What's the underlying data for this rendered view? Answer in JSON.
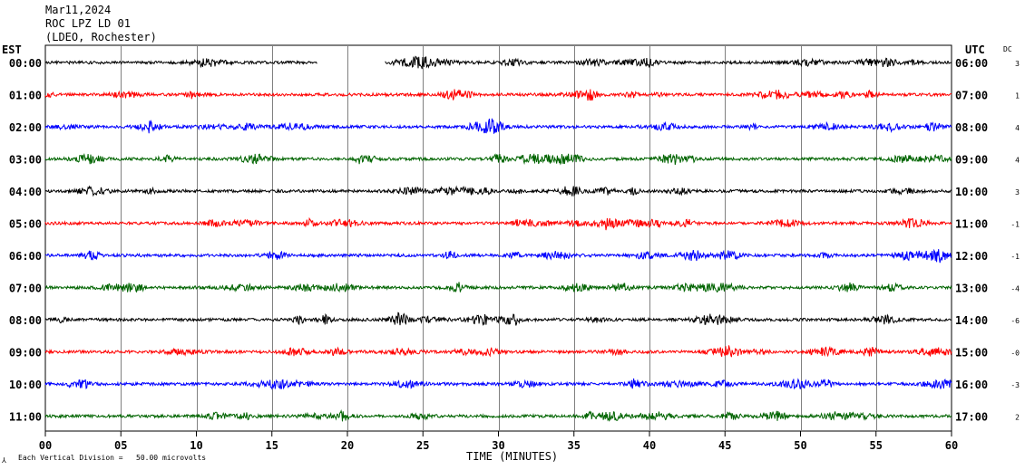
{
  "header": {
    "date": "Mar11,2024",
    "station": "ROC LPZ LD 01",
    "network": "(LDEO, Rochester)"
  },
  "labels": {
    "left_zone": "EST",
    "right_zone": "UTC",
    "dc_header": "DC",
    "xlabel": "TIME (MINUTES)",
    "scale_note": "Each Vertical Division =   50.00 microvolts",
    "corner_mark": "⅄"
  },
  "colors": {
    "trace_cycle": [
      "#000000",
      "#ff0000",
      "#0000ff",
      "#006400"
    ],
    "grid": "#000000",
    "background": "#ffffff"
  },
  "chart_data": {
    "type": "line",
    "title": "ROC LPZ LD 01",
    "xlabel": "TIME (MINUTES)",
    "x_range": [
      0,
      60
    ],
    "x_ticks": [
      "00",
      "05",
      "10",
      "15",
      "20",
      "25",
      "30",
      "35",
      "40",
      "45",
      "50",
      "55",
      "60"
    ],
    "vertical_grid_every_minutes": 5,
    "rows": [
      {
        "est": "00:00",
        "utc": "06:00",
        "dc": "3",
        "color": "#000000",
        "gaps": [
          [
            18,
            22.5
          ]
        ]
      },
      {
        "est": "01:00",
        "utc": "07:00",
        "dc": "1",
        "color": "#ff0000"
      },
      {
        "est": "02:00",
        "utc": "08:00",
        "dc": "4",
        "color": "#0000ff"
      },
      {
        "est": "03:00",
        "utc": "09:00",
        "dc": "4",
        "color": "#006400"
      },
      {
        "est": "04:00",
        "utc": "10:00",
        "dc": "3",
        "color": "#000000"
      },
      {
        "est": "05:00",
        "utc": "11:00",
        "dc": "-1",
        "color": "#ff0000"
      },
      {
        "est": "06:00",
        "utc": "12:00",
        "dc": "-1",
        "color": "#0000ff"
      },
      {
        "est": "07:00",
        "utc": "13:00",
        "dc": "-4",
        "color": "#006400"
      },
      {
        "est": "08:00",
        "utc": "14:00",
        "dc": "-6",
        "color": "#000000"
      },
      {
        "est": "09:00",
        "utc": "15:00",
        "dc": "-0",
        "color": "#ff0000"
      },
      {
        "est": "10:00",
        "utc": "16:00",
        "dc": "-3",
        "color": "#0000ff"
      },
      {
        "est": "11:00",
        "utc": "17:00",
        "dc": "2",
        "color": "#006400"
      }
    ]
  }
}
